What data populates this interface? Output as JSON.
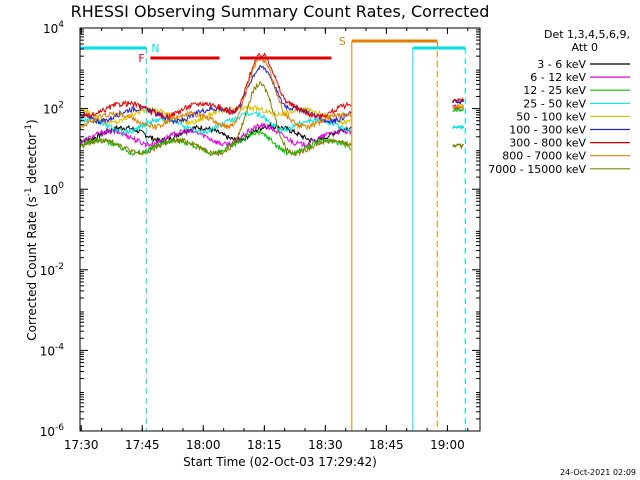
{
  "chart_data": {
    "type": "line",
    "title": "RHESSI Observing Summary Count Rates, Corrected",
    "xlabel": "Start Time (02-Oct-03 17:29:42)",
    "ylabel_main": "Corrected Count Rate (s",
    "ylabel_sup1": "-1",
    "ylabel_mid": " detector",
    "ylabel_sup2": "-1",
    "ylabel_end": ")",
    "yscale": "log",
    "ylim": [
      1e-06,
      10000
    ],
    "xlim": [
      "17:29:42",
      "19:08:00"
    ],
    "grid": false,
    "legend_position": "right",
    "legend_title": [
      "Det 1,3,4,5,6,9,",
      "Att 0"
    ],
    "x_ticks": [
      "17:30",
      "17:45",
      "18:00",
      "18:15",
      "18:30",
      "18:45",
      "19:00"
    ],
    "y_ticks": [
      {
        "base": "10",
        "exp": "-6",
        "value": 1e-06
      },
      {
        "base": "10",
        "exp": "-4",
        "value": 0.0001
      },
      {
        "base": "10",
        "exp": "-2",
        "value": 0.01
      },
      {
        "base": "10",
        "exp": "0",
        "value": 1
      },
      {
        "base": "10",
        "exp": "2",
        "value": 100
      },
      {
        "base": "10",
        "exp": "4",
        "value": 10000
      }
    ],
    "series": [
      {
        "name": "3 - 6 keV",
        "color": "#000000",
        "level": 25,
        "segment2": null
      },
      {
        "name": "6 - 12 keV",
        "color": "#e000e0",
        "level": 20,
        "segment2": 110
      },
      {
        "name": "12 - 25 keV",
        "color": "#00c000",
        "level": 12,
        "segment2": 95
      },
      {
        "name": "25 - 50 keV",
        "color": "#00e0e0",
        "level": 40,
        "segment2": 35
      },
      {
        "name": "50 - 100 keV",
        "color": "#e0c000",
        "level": 70,
        "segment2": 115
      },
      {
        "name": "100 - 300 keV",
        "color": "#2020d0",
        "level": 75,
        "segment2": 150
      },
      {
        "name": "300 - 800 keV",
        "color": "#e00000",
        "level": 100,
        "segment2": 160
      },
      {
        "name": "800 - 7000 keV",
        "color": "#e08000",
        "level": 55,
        "segment2": 110
      },
      {
        "name": "7000 - 15000 keV",
        "color": "#808000",
        "level": 12,
        "segment2": 12
      }
    ],
    "flags": {
      "N_label": "N",
      "F_label": "F",
      "S_label": "S",
      "night_color": "#00e0e0",
      "flare_color": "#e00000",
      "saa_color": "#e08000"
    },
    "timestamp": "24-Oct-2021 02:09"
  }
}
